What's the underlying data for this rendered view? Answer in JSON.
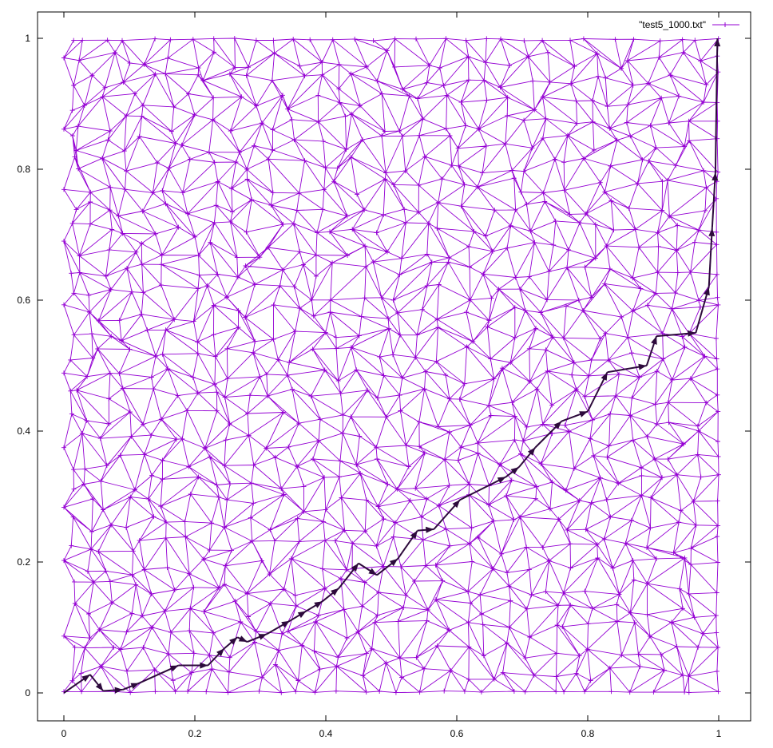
{
  "chart_data": {
    "type": "line",
    "title": "",
    "xlabel": "",
    "ylabel": "",
    "xlim": [
      0,
      1
    ],
    "ylim": [
      0,
      1
    ],
    "grid": false,
    "legend_position": "top-right",
    "x_ticks": [
      "0",
      "0.2",
      "0.4",
      "0.6",
      "0.8",
      "1"
    ],
    "y_ticks": [
      "0",
      "0.2",
      "0.4",
      "0.6",
      "0.8",
      "1"
    ],
    "x_tick_values": [
      0,
      0.2,
      0.4,
      0.6,
      0.8,
      1
    ],
    "y_tick_values": [
      0,
      0.2,
      0.4,
      0.6,
      0.8,
      1
    ],
    "mesh_color": "#9400d3",
    "path_color": "#2d0a3c",
    "series": [
      {
        "name": "\"test5_1000.txt\"",
        "kind": "triangulation mesh of 1000 points in the unit square"
      }
    ],
    "path": {
      "x": [
        0,
        0.04,
        0.06,
        0.09,
        0.115,
        0.175,
        0.22,
        0.245,
        0.265,
        0.28,
        0.31,
        0.345,
        0.37,
        0.395,
        0.42,
        0.45,
        0.478,
        0.51,
        0.54,
        0.565,
        0.605,
        0.675,
        0.695,
        0.72,
        0.76,
        0.8,
        0.83,
        0.89,
        0.905,
        0.965,
        0.985,
        0.99,
        0.995,
        0.998
      ],
      "y": [
        0,
        0.028,
        0.003,
        0.005,
        0.015,
        0.042,
        0.042,
        0.068,
        0.085,
        0.078,
        0.09,
        0.11,
        0.125,
        0.14,
        0.16,
        0.198,
        0.18,
        0.205,
        0.248,
        0.25,
        0.295,
        0.33,
        0.345,
        0.375,
        0.415,
        0.43,
        0.49,
        0.5,
        0.545,
        0.55,
        0.62,
        0.71,
        0.795,
        1.0
      ]
    }
  }
}
